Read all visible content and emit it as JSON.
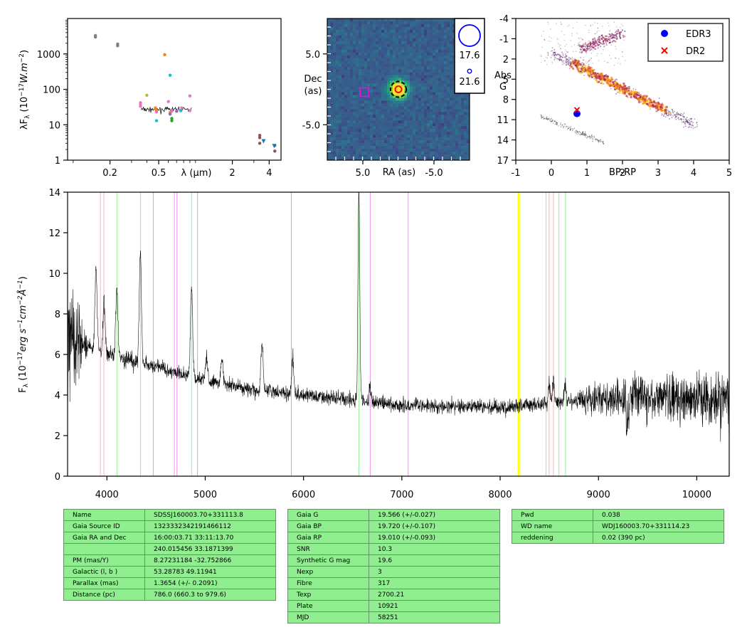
{
  "colors": {
    "sed_ink": "#000000",
    "spectrum_line": "#000000",
    "image_cmap": "viridis",
    "hr_cmap": "inferno",
    "edr3_marker": "#0000ff",
    "dr2_marker": "#ff0000",
    "target_box": "#ff00ff",
    "line_balmer": "#90ee90",
    "line_ca": "#ffaaaa",
    "line_he": "#ee82ee",
    "line_telluric": "#ffff00",
    "table_fill": "#90ee90"
  },
  "chart_data": [
    {
      "id": "sed",
      "type": "scatter",
      "ylabel": "λF_λ (10^-17 W.m^-2)",
      "xlabel": "λ (μm)",
      "xscale": "log",
      "yscale": "log",
      "xlim": [
        0.09,
        5.0
      ],
      "ylim": [
        1,
        10000
      ],
      "xticks": [
        {
          "v": 0.2,
          "l": "0.2"
        },
        {
          "v": 0.5,
          "l": "0.5"
        },
        {
          "v": 2,
          "l": "2"
        },
        {
          "v": 4,
          "l": "4"
        }
      ],
      "yticks": [
        {
          "v": 1,
          "l": "1"
        },
        {
          "v": 10,
          "l": "10"
        },
        {
          "v": 100,
          "l": "100"
        },
        {
          "v": 1000,
          "l": "1000"
        }
      ],
      "series": [
        {
          "color": "#808080",
          "points": [
            [
              0.152,
              3300
            ],
            [
              0.152,
              3000
            ],
            [
              0.231,
              1900
            ],
            [
              0.231,
              1700
            ]
          ]
        },
        {
          "color": "#ff7f0e",
          "points": [
            [
              0.56,
              950
            ],
            [
              0.47,
              30
            ],
            [
              0.62,
              22
            ],
            [
              0.48,
              25
            ]
          ]
        },
        {
          "color": "#17becf",
          "points": [
            [
              0.62,
              250
            ],
            [
              0.48,
              13
            ],
            [
              0.76,
              25
            ]
          ]
        },
        {
          "color": "#bcbd22",
          "points": [
            [
              0.4,
              68
            ]
          ]
        },
        {
          "color": "#e377c2",
          "points": [
            [
              0.355,
              42
            ],
            [
              0.355,
              37
            ],
            [
              0.355,
              33
            ],
            [
              0.6,
              45
            ],
            [
              0.48,
              23
            ],
            [
              0.64,
              24
            ],
            [
              0.77,
              30
            ],
            [
              0.9,
              65
            ],
            [
              0.9,
              25
            ]
          ]
        },
        {
          "color": "#9467bd",
          "points": [
            [
              0.62,
              20
            ],
            [
              0.7,
              24
            ]
          ]
        },
        {
          "color": "#2ca02c",
          "points": [
            [
              0.64,
              15
            ],
            [
              0.64,
              13
            ]
          ]
        },
        {
          "color": "#8c564b",
          "points": [
            [
              3.35,
              5
            ],
            [
              3.35,
              4.3
            ],
            [
              3.35,
              3
            ],
            [
              4.45,
              2.6
            ],
            [
              4.45,
              1.8
            ]
          ]
        },
        {
          "color": "#1f77b4",
          "marker": "triangle",
          "points": [
            [
              3.6,
              3.4
            ],
            [
              4.4,
              2.5
            ]
          ]
        }
      ],
      "spectrum_segment": {
        "x_range": [
          0.36,
          0.93
        ],
        "level": 27
      }
    },
    {
      "id": "image",
      "type": "heatmap",
      "xlabel": "RA (as)",
      "ylabel": "Dec (as)",
      "xlim": [
        10,
        -10
      ],
      "ylim": [
        -10,
        10
      ],
      "xticks": [
        {
          "v": 5,
          "l": "5.0"
        },
        {
          "v": -5,
          "l": "-5.0"
        }
      ],
      "yticks": [
        {
          "v": 5,
          "l": "5.0"
        },
        {
          "v": -5,
          "l": "-5.0"
        }
      ],
      "source": {
        "ra": 0,
        "dec": 0
      },
      "box_marker": {
        "ra": 4.8,
        "dec": -0.4
      },
      "legend": [
        {
          "label": "17.6"
        },
        {
          "label": "21.6"
        }
      ]
    },
    {
      "id": "hr",
      "type": "scatter",
      "xlabel": "BP-RP",
      "ylabel": "Abs G",
      "xlim": [
        -1,
        5
      ],
      "ylim": [
        17,
        -4
      ],
      "xticks": [
        {
          "v": -1,
          "l": "-1"
        },
        {
          "v": 0,
          "l": "0"
        },
        {
          "v": 1,
          "l": "1"
        },
        {
          "v": 2,
          "l": "2"
        },
        {
          "v": 3,
          "l": "3"
        },
        {
          "v": 4,
          "l": "4"
        },
        {
          "v": 5,
          "l": "5"
        }
      ],
      "yticks": [
        {
          "v": -4,
          "l": "-4"
        },
        {
          "v": -1,
          "l": "-1"
        },
        {
          "v": 2,
          "l": "2"
        },
        {
          "v": 5,
          "l": "5"
        },
        {
          "v": 8,
          "l": "8"
        },
        {
          "v": 11,
          "l": "11"
        },
        {
          "v": 14,
          "l": "14"
        },
        {
          "v": 17,
          "l": "17"
        }
      ],
      "points": [
        {
          "name": "EDR3",
          "color": "#0000ff",
          "marker": "circle",
          "x": 0.72,
          "y": 10.1
        },
        {
          "name": "DR2",
          "color": "#ff0000",
          "marker": "x",
          "x": 0.72,
          "y": 9.55
        }
      ],
      "legend": [
        {
          "label": "EDR3"
        },
        {
          "label": "DR2"
        }
      ]
    },
    {
      "id": "spectrum",
      "type": "line",
      "ylabel": "F_λ (10^-17 erg s^-1 cm^-2 Å^-1)",
      "xlabel": "",
      "xlim": [
        3600,
        10330
      ],
      "ylim": [
        0,
        14
      ],
      "xticks": [
        {
          "v": 4000,
          "l": "4000"
        },
        {
          "v": 5000,
          "l": "5000"
        },
        {
          "v": 6000,
          "l": "6000"
        },
        {
          "v": 7000,
          "l": "7000"
        },
        {
          "v": 8000,
          "l": "8000"
        },
        {
          "v": 9000,
          "l": "9000"
        },
        {
          "v": 10000,
          "l": "10000"
        }
      ],
      "yticks": [
        {
          "v": 0,
          "l": "0"
        },
        {
          "v": 2,
          "l": "2"
        },
        {
          "v": 4,
          "l": "4"
        },
        {
          "v": 6,
          "l": "6"
        },
        {
          "v": 8,
          "l": "8"
        },
        {
          "v": 10,
          "l": "10"
        },
        {
          "v": 12,
          "l": "12"
        },
        {
          "v": 14,
          "l": "14"
        }
      ],
      "continuum": [
        [
          3600,
          7.0
        ],
        [
          3700,
          6.5
        ],
        [
          3900,
          6.2
        ],
        [
          4100,
          5.9
        ],
        [
          4500,
          5.4
        ],
        [
          5000,
          4.7
        ],
        [
          5500,
          4.25
        ],
        [
          6000,
          4.0
        ],
        [
          6500,
          3.75
        ],
        [
          7000,
          3.5
        ],
        [
          7500,
          3.45
        ],
        [
          8000,
          3.4
        ],
        [
          8500,
          3.6
        ],
        [
          9000,
          3.8
        ],
        [
          9500,
          3.9
        ],
        [
          10000,
          3.85
        ],
        [
          10330,
          3.8
        ]
      ],
      "emission_peaks": [
        {
          "wl": 3889,
          "h": 4.0
        },
        {
          "wl": 3970,
          "h": 2.5
        },
        {
          "wl": 4101,
          "h": 3.5
        },
        {
          "wl": 4340,
          "h": 5.5
        },
        {
          "wl": 4861,
          "h": 4.5
        },
        {
          "wl": 5015,
          "h": 1.2
        },
        {
          "wl": 5169,
          "h": 1.3
        },
        {
          "wl": 5577,
          "h": 2.5
        },
        {
          "wl": 5890,
          "h": 1.8
        },
        {
          "wl": 6563,
          "h": 10.5
        },
        {
          "wl": 6678,
          "h": 0.8
        },
        {
          "wl": 8498,
          "h": 1.0
        },
        {
          "wl": 8542,
          "h": 1.2
        },
        {
          "wl": 8662,
          "h": 0.9
        }
      ],
      "vlines": [
        {
          "wl": 3934,
          "color": "#ffaaaa"
        },
        {
          "wl": 3969,
          "color": "#ffaaaa"
        },
        {
          "wl": 4102,
          "color": "#90ee90"
        },
        {
          "wl": 4341,
          "color": "#90ee90"
        },
        {
          "wl": 4861,
          "color": "#90ee90"
        },
        {
          "wl": 6563,
          "color": "#90ee90"
        },
        {
          "wl": 4471,
          "color": "#ee82ee"
        },
        {
          "wl": 4686,
          "color": "#ee82ee"
        },
        {
          "wl": 4713,
          "color": "#ee82ee"
        },
        {
          "wl": 4922,
          "color": "#ee82ee"
        },
        {
          "wl": 5876,
          "color": "#ee82ee"
        },
        {
          "wl": 6678,
          "color": "#ee82ee"
        },
        {
          "wl": 7065,
          "color": "#ee82ee"
        },
        {
          "wl": 8183,
          "color": "#ffff00"
        },
        {
          "wl": 8195,
          "color": "#ffff00"
        },
        {
          "wl": 8498,
          "color": "#ffaaaa"
        },
        {
          "wl": 8542,
          "color": "#ffaaaa"
        },
        {
          "wl": 8467,
          "color": "#90ee90"
        },
        {
          "wl": 8598,
          "color": "#90ee90"
        },
        {
          "wl": 8665,
          "color": "#90ee90"
        }
      ]
    }
  ],
  "tables": {
    "t1": [
      {
        "k": "Name",
        "v": "SDSSJ160003.70+331113.8"
      },
      {
        "k": "Gaia Source ID",
        "v": "1323332342191466112"
      },
      {
        "k": "Gaia RA and Dec",
        "v": "16:00:03.71    33:11:13.70"
      },
      {
        "k": "",
        "v": "240.015456    33.1871399"
      },
      {
        "k": "PM (mas/Y)",
        "v": "8.27231184    -32.752866"
      },
      {
        "k": "Galactic (l, b )",
        "v": "53.28783    49.11941"
      },
      {
        "k": "Parallax (mas)",
        "v": "1.3654 (+/- 0.2091)"
      },
      {
        "k": "Distance (pc)",
        "v": "786.0 (660.3 to 979.6)"
      }
    ],
    "t2": [
      {
        "k": "Gaia G",
        "v": "19.566 (+/-0.027)"
      },
      {
        "k": "Gaia BP",
        "v": "19.720 (+/-0.107)"
      },
      {
        "k": "Gaia RP",
        "v": "19.010 (+/-0.093)"
      },
      {
        "k": "SNR",
        "v": "10.3"
      },
      {
        "k": "Synthetic G mag",
        "v": "19.6"
      },
      {
        "k": "Nexp",
        "v": "3"
      },
      {
        "k": "Fibre",
        "v": "317"
      },
      {
        "k": "Texp",
        "v": "2700.21"
      },
      {
        "k": "Plate",
        "v": "10921"
      },
      {
        "k": "MJD",
        "v": "58251"
      }
    ],
    "t3": [
      {
        "k": "Pwd",
        "v": "0.038"
      },
      {
        "k": "WD name",
        "v": "WDJ160003.70+331114.23"
      },
      {
        "k": "reddening",
        "v": "0.02 (390 pc)"
      }
    ]
  }
}
